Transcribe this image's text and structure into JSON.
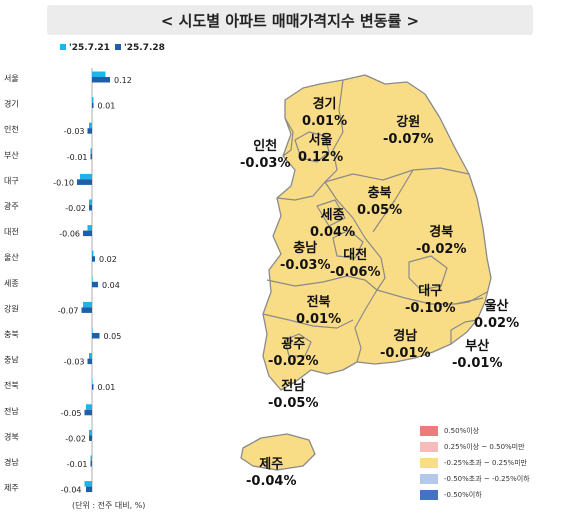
{
  "title": "< 시도별 아파트 매매가격지수 변동률 >",
  "unit_note": "(단위 : 전주 대비, %)",
  "colors": {
    "prev_week": "#1fb3ea",
    "curr_week": "#1f5fa8",
    "map_fill": "#f9dc86",
    "map_stroke": "#8a8a8a"
  },
  "chart_data": {
    "type": "bar",
    "orientation": "horizontal",
    "categories": [
      "서울",
      "경기",
      "인천",
      "부산",
      "대구",
      "광주",
      "대전",
      "울산",
      "세종",
      "강원",
      "충북",
      "충남",
      "전북",
      "전남",
      "경북",
      "경남",
      "제주"
    ],
    "series": [
      {
        "name": "'25.7.21",
        "values": [
          0.09,
          0.01,
          -0.02,
          -0.01,
          -0.08,
          -0.02,
          -0.03,
          0.01,
          0.0,
          -0.06,
          0.0,
          -0.02,
          0.0,
          -0.04,
          -0.02,
          -0.01,
          -0.05
        ]
      },
      {
        "name": "'25.7.28",
        "values": [
          0.12,
          0.01,
          -0.03,
          -0.01,
          -0.1,
          -0.02,
          -0.06,
          0.02,
          0.04,
          -0.07,
          0.05,
          -0.03,
          0.01,
          -0.05,
          -0.02,
          -0.01,
          -0.04
        ]
      }
    ],
    "value_labels": [
      "0.12",
      "0.01",
      "-0.03",
      "-0.01",
      "-0.10",
      "-0.02",
      "-0.06",
      "0.02",
      "0.04",
      "-0.07",
      "0.05",
      "-0.03",
      "0.01",
      "-0.05",
      "-0.02",
      "-0.01",
      "-0.04"
    ],
    "legend_position": "top-left"
  },
  "map": {
    "regions": [
      {
        "id": "gyeonggi",
        "name": "경기",
        "value": "0.01%"
      },
      {
        "id": "gangwon",
        "name": "강원",
        "value": "-0.07%"
      },
      {
        "id": "incheon",
        "name": "인천",
        "value": "-0.03%"
      },
      {
        "id": "seoul",
        "name": "서울",
        "value": "0.12%"
      },
      {
        "id": "chungbuk",
        "name": "충북",
        "value": "0.05%"
      },
      {
        "id": "sejong",
        "name": "세종",
        "value": "0.04%"
      },
      {
        "id": "chungnam",
        "name": "충남",
        "value": "-0.03%"
      },
      {
        "id": "daejeon",
        "name": "대전",
        "value": "-0.06%"
      },
      {
        "id": "gyeongbuk",
        "name": "경북",
        "value": "-0.02%"
      },
      {
        "id": "daegu",
        "name": "대구",
        "value": "-0.10%"
      },
      {
        "id": "jeonbuk",
        "name": "전북",
        "value": "0.01%"
      },
      {
        "id": "ulsan",
        "name": "울산",
        "value": "0.02%"
      },
      {
        "id": "gyeongnam",
        "name": "경남",
        "value": "-0.01%"
      },
      {
        "id": "busan",
        "name": "부산",
        "value": "-0.01%"
      },
      {
        "id": "gwangju",
        "name": "광주",
        "value": "-0.02%"
      },
      {
        "id": "jeonnam",
        "name": "전남",
        "value": "-0.05%"
      },
      {
        "id": "jeju",
        "name": "제주",
        "value": "-0.04%"
      }
    ]
  },
  "legend": [
    {
      "label": "0.50%이상",
      "color": "#ec7c7c"
    },
    {
      "label": "0.25%이상 ~ 0.50%미만",
      "color": "#f6bcbc"
    },
    {
      "label": "-0.25%초과 ~ 0.25%미만",
      "color": "#f9dc86"
    },
    {
      "label": "-0.50%초과 ~ -0.25%이하",
      "color": "#b4c8ea"
    },
    {
      "label": "-0.50%이하",
      "color": "#4473c4"
    }
  ]
}
